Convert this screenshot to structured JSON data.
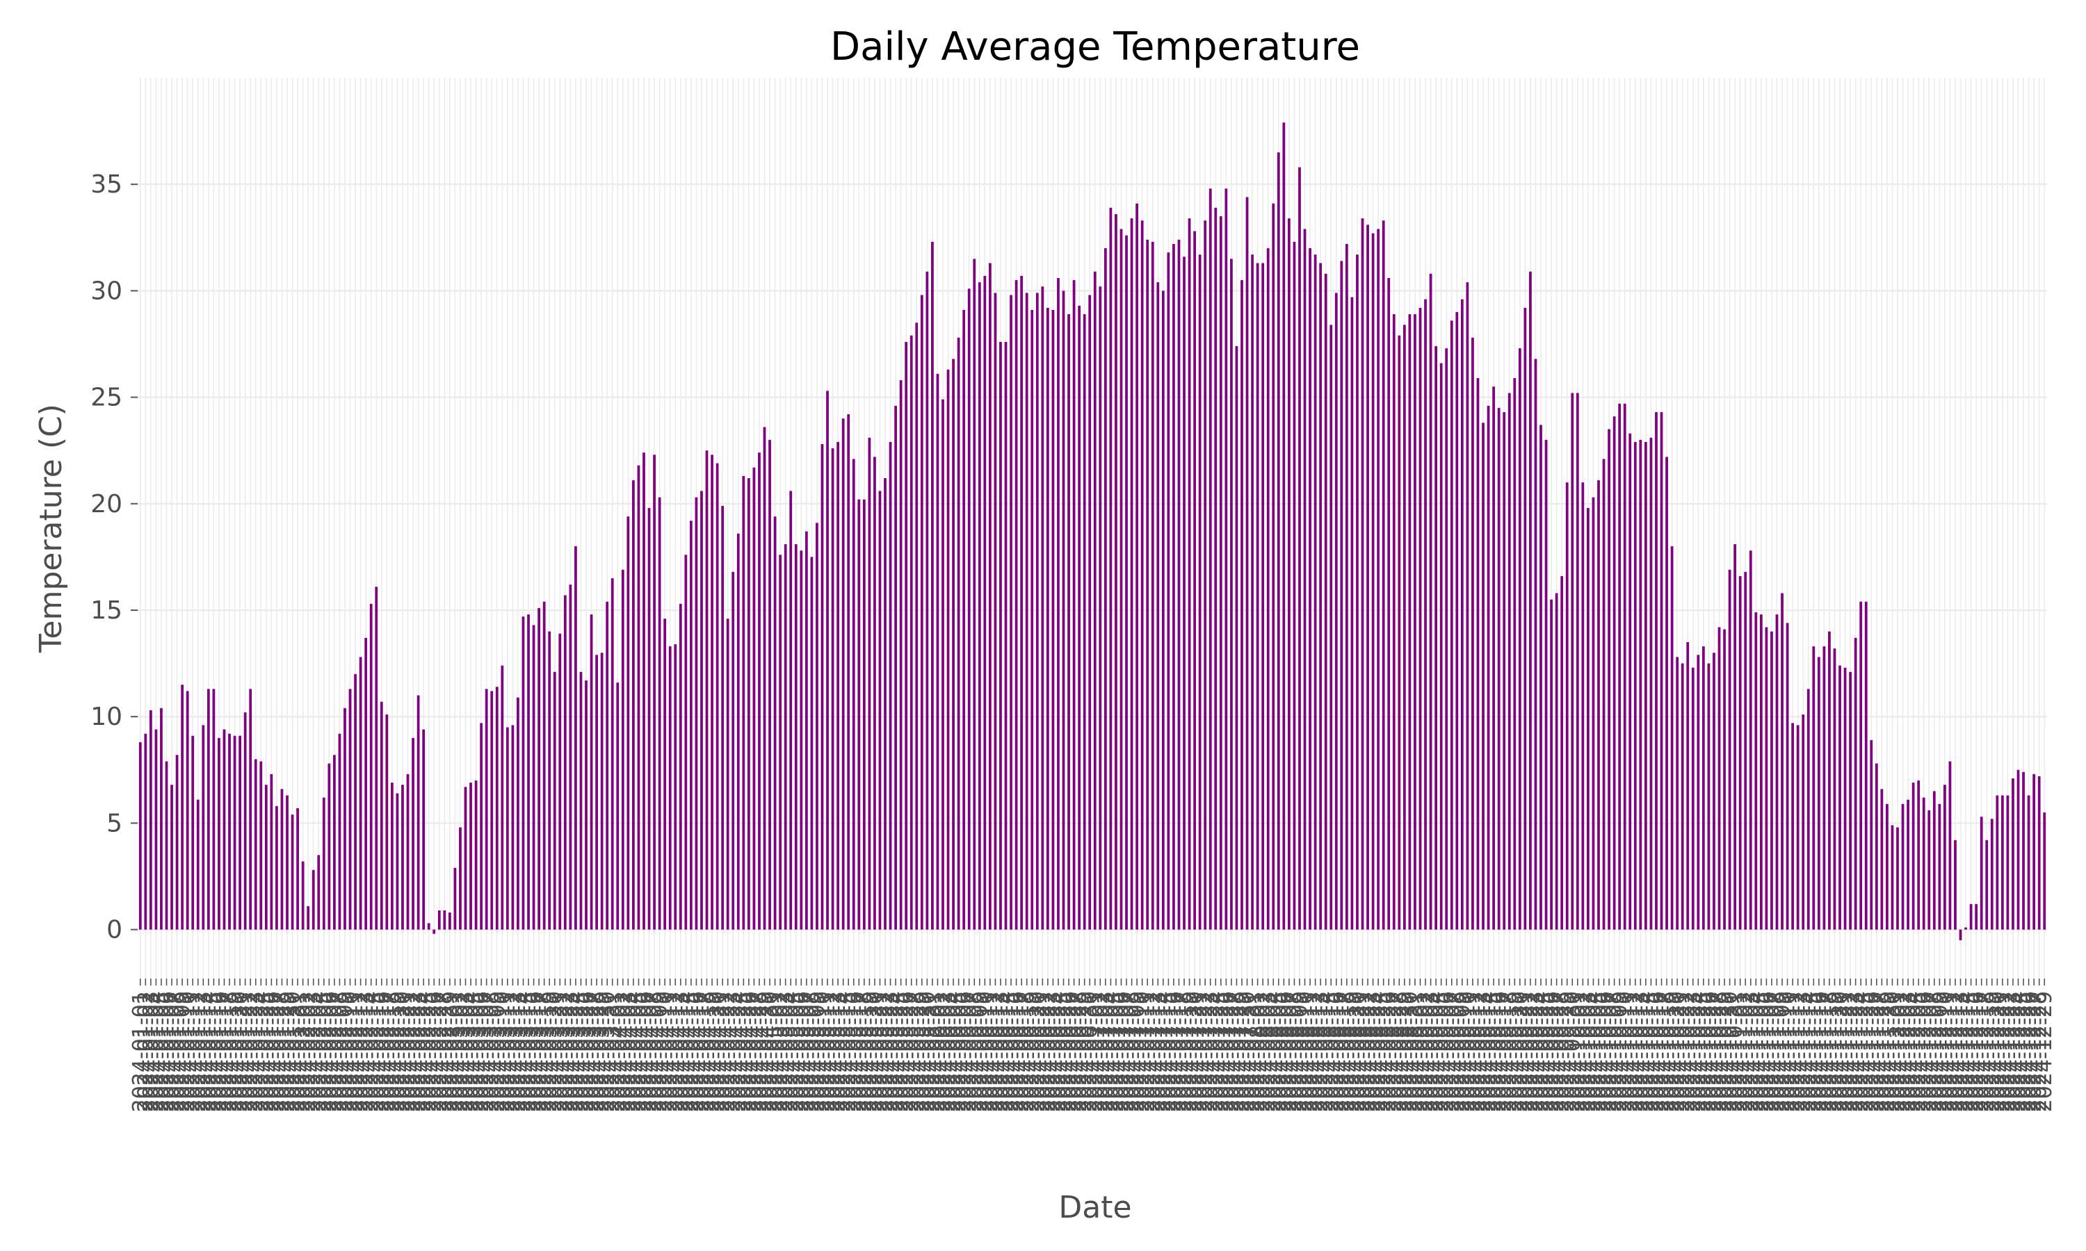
{
  "chart_data": {
    "type": "bar",
    "title": "Daily Average Temperature",
    "xlabel": "Date",
    "ylabel": "Temperature (C)",
    "ylim": [
      -2.3,
      40
    ],
    "yticks": [
      0,
      5,
      10,
      15,
      20,
      25,
      30,
      35
    ],
    "grid": true,
    "legend": "none",
    "bar_color": "#800080",
    "grid_color": "#ebebeb",
    "start_date": "2024-01-01",
    "series": [
      {
        "values": [
          8.8,
          9.2,
          10.3,
          9.4,
          10.4,
          7.9,
          6.8,
          8.2,
          11.5,
          11.2,
          9.1,
          6.1,
          9.6,
          11.3,
          11.3,
          9.0,
          9.4,
          9.2,
          9.1,
          9.1,
          10.2,
          11.3,
          8.0,
          7.9,
          6.8,
          7.3,
          5.8,
          6.6,
          6.3,
          5.4,
          5.7,
          3.2,
          1.1,
          2.8,
          3.5,
          6.2,
          7.8,
          8.2,
          9.2,
          10.4,
          11.3,
          12.0,
          12.8,
          13.7,
          15.3,
          16.1,
          10.7,
          10.1,
          6.9,
          6.4,
          6.8,
          7.3,
          9.0,
          11.0,
          9.4,
          0.3,
          -0.2,
          0.9,
          0.9,
          0.8,
          2.9,
          4.8,
          6.7,
          6.9,
          7.0,
          9.7,
          11.3,
          11.2,
          11.4,
          12.4,
          9.5,
          9.6,
          10.9,
          14.7,
          14.8,
          14.3,
          15.1,
          15.4,
          14.0,
          12.1,
          13.9,
          15.7,
          16.2,
          18.0,
          12.1,
          11.7,
          14.8,
          12.9,
          13.0,
          15.4,
          16.5,
          11.6,
          16.9,
          19.4,
          21.1,
          21.8,
          22.4,
          19.8,
          22.3,
          20.3,
          14.6,
          13.3,
          13.4,
          15.3,
          17.6,
          19.2,
          20.3,
          20.6,
          22.5,
          22.3,
          21.9,
          19.9,
          14.6,
          16.8,
          18.6,
          21.3,
          21.2,
          21.7,
          22.4,
          23.6,
          23.0,
          19.4,
          17.6,
          18.1,
          20.6,
          18.1,
          17.8,
          18.7,
          17.5,
          19.1,
          22.8,
          25.3,
          22.6,
          22.9,
          24.0,
          24.2,
          22.1,
          20.2,
          20.2,
          23.1,
          22.2,
          20.6,
          21.2,
          22.9,
          24.6,
          25.8,
          27.6,
          27.9,
          28.5,
          29.8,
          30.9,
          32.3,
          26.1,
          24.9,
          26.3,
          26.8,
          27.8,
          29.1,
          30.1,
          31.5,
          30.4,
          30.7,
          31.3,
          29.9,
          27.6,
          27.6,
          29.8,
          30.5,
          30.7,
          29.9,
          29.1,
          29.9,
          30.2,
          29.2,
          29.1,
          30.6,
          30.0,
          28.9,
          30.5,
          29.3,
          28.9,
          29.8,
          30.9,
          30.2,
          32.0,
          33.9,
          33.6,
          32.9,
          32.6,
          33.4,
          34.1,
          33.3,
          32.4,
          32.3,
          30.4,
          30.0,
          31.8,
          32.2,
          32.4,
          31.6,
          33.4,
          32.8,
          31.7,
          33.3,
          34.8,
          33.9,
          33.5,
          34.8,
          31.5,
          27.4,
          30.5,
          34.4,
          31.7,
          31.3,
          31.3,
          32.0,
          34.1,
          36.5,
          37.9,
          33.4,
          32.3,
          35.8,
          32.9,
          32.0,
          31.7,
          31.3,
          30.8,
          28.4,
          29.9,
          31.4,
          32.2,
          29.7,
          31.7,
          33.4,
          33.1,
          32.7,
          32.9,
          33.3,
          30.6,
          28.9,
          27.9,
          28.4,
          28.9,
          28.9,
          29.2,
          29.6,
          30.8,
          27.4,
          26.6,
          27.3,
          28.6,
          29.0,
          29.6,
          30.4,
          27.8,
          25.9,
          23.8,
          24.6,
          25.5,
          24.5,
          24.3,
          25.2,
          25.9,
          27.3,
          29.2,
          30.9,
          26.8,
          23.7,
          23.0,
          15.5,
          15.8,
          16.6,
          21.0,
          25.2,
          25.2,
          21.0,
          19.8,
          20.3,
          21.1,
          22.1,
          23.5,
          24.1,
          24.7,
          24.7,
          23.3,
          22.9,
          23.0,
          22.9,
          23.1,
          24.3,
          24.3,
          22.2,
          18.0,
          12.8,
          12.5,
          13.5,
          12.3,
          12.9,
          13.3,
          12.5,
          13.0,
          14.2,
          14.1,
          16.9,
          18.1,
          16.6,
          16.8,
          17.8,
          14.9,
          14.8,
          14.2,
          14.0,
          14.8,
          15.8,
          14.4,
          9.7,
          9.6,
          10.1,
          11.3,
          13.3,
          12.8,
          13.3,
          14.0,
          13.2,
          12.4,
          12.3,
          12.1,
          13.7,
          15.4,
          15.4,
          8.9,
          7.8,
          6.6,
          5.9,
          4.9,
          4.8,
          5.9,
          6.1,
          6.9,
          7.0,
          6.2,
          5.6,
          6.5,
          5.9,
          6.8,
          7.9,
          4.2,
          -0.5,
          0.1,
          1.2,
          1.2,
          5.3,
          4.2,
          5.2,
          6.3,
          6.3,
          6.3,
          7.1,
          7.5,
          7.4,
          6.3,
          7.3,
          7.2,
          5.5
        ]
      }
    ]
  }
}
